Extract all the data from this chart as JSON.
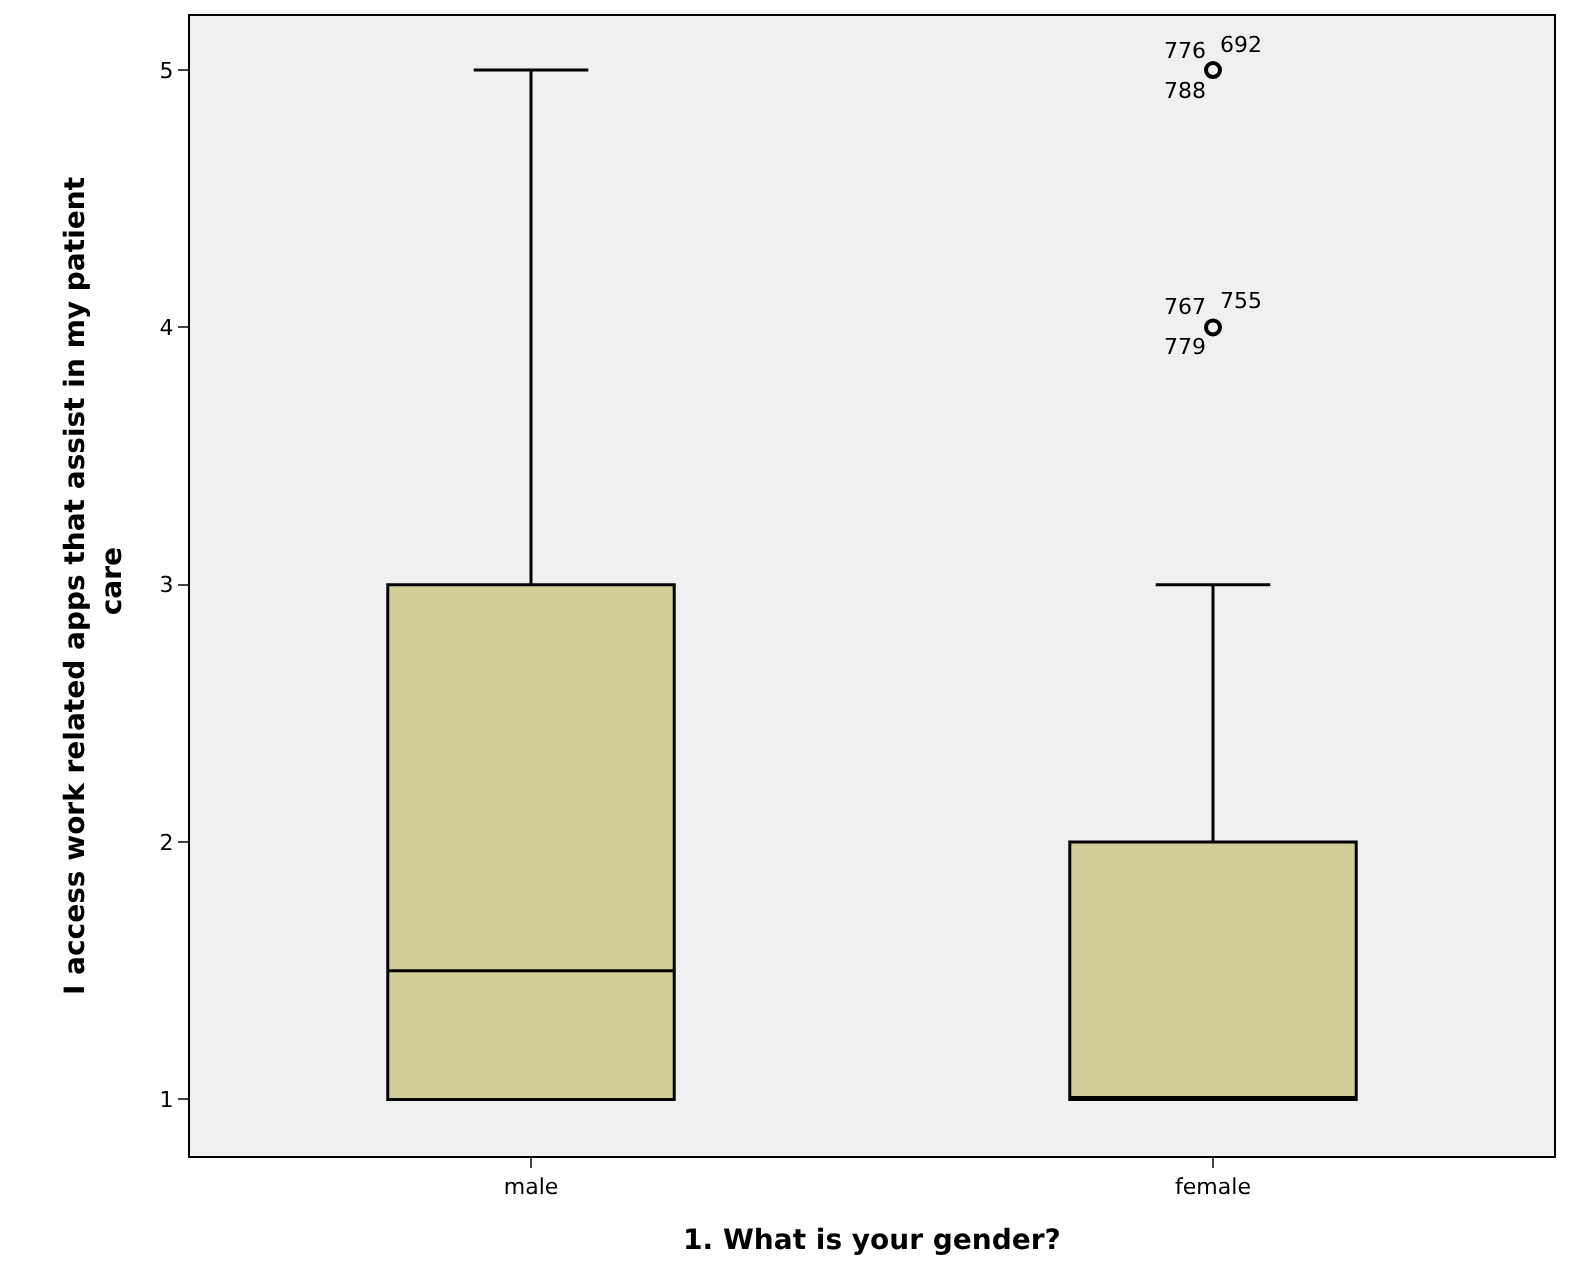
{
  "chart_data": {
    "type": "box",
    "xlabel": "1. What is your gender?",
    "ylabel": "I access work related apps that assist in my patient care",
    "categories": [
      "male",
      "female"
    ],
    "boxes": [
      {
        "low": 1,
        "q1": 1,
        "median": 1.5,
        "q3": 3,
        "high": 5
      },
      {
        "low": 1,
        "q1": 1,
        "median": 1,
        "q3": 2,
        "high": 3,
        "outliers": [
          5,
          4
        ]
      }
    ],
    "color": "#d3ce97",
    "ylim": [
      0.78,
      5.21
    ],
    "yticks": [
      1,
      2,
      3,
      4,
      5
    ],
    "grid": false,
    "legend": false,
    "annotations": [
      "776",
      "692",
      "788",
      "767",
      "755",
      "779"
    ]
  }
}
